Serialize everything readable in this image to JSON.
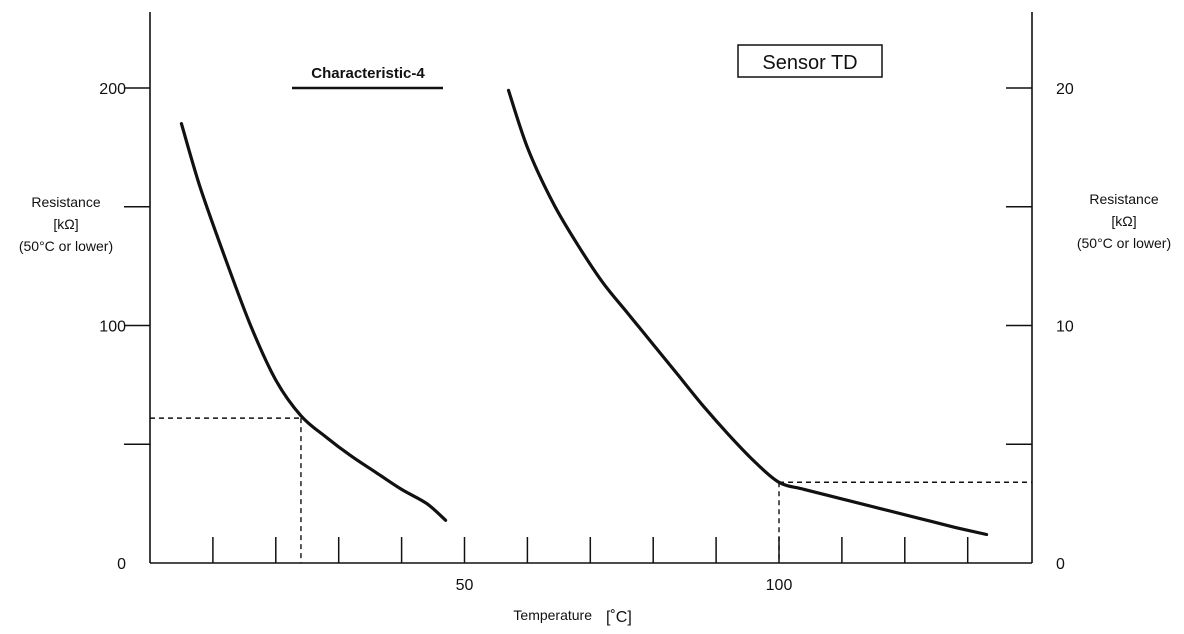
{
  "chart_data": {
    "type": "line",
    "x_label": "Temperature",
    "x_unit": "[˚C]",
    "x_range": [
      0,
      140
    ],
    "x_ticks": [
      50,
      100
    ],
    "left_axis": {
      "label_lines": [
        "Resistance",
        "[kΩ]",
        "(50°C or lower)"
      ],
      "range": [
        0,
        200
      ],
      "ticks": [
        0,
        100,
        200
      ]
    },
    "right_axis": {
      "label_lines": [
        "Resistance",
        "[kΩ]",
        "(50°C or lower)"
      ],
      "range": [
        0,
        20
      ],
      "ticks": [
        0,
        10,
        20
      ]
    },
    "grid": false,
    "legend": {
      "label": "Characteristic-4",
      "placement": "top-left"
    },
    "annotation_box": {
      "text": "Sensor TD",
      "placement": "top-right"
    },
    "series": [
      {
        "axis": "left",
        "x": [
          5,
          8,
          12,
          16,
          20,
          24,
          28,
          32,
          36,
          40,
          44,
          47
        ],
        "y": [
          185,
          158,
          128,
          100,
          77,
          62,
          53,
          45,
          38,
          31,
          25,
          18
        ]
      },
      {
        "axis": "right",
        "x": [
          57,
          60,
          64,
          68,
          72,
          76,
          80,
          84,
          88,
          92,
          96,
          100,
          104,
          110,
          116,
          122,
          128,
          133
        ],
        "y": [
          19.9,
          17.5,
          15.2,
          13.4,
          11.8,
          10.5,
          9.2,
          7.9,
          6.6,
          5.4,
          4.3,
          3.4,
          3.1,
          2.7,
          2.3,
          1.9,
          1.5,
          1.2
        ]
      }
    ],
    "reference_points": [
      {
        "axis": "left",
        "x": 24,
        "y": 61
      },
      {
        "axis": "right",
        "x": 100,
        "y": 3.4
      }
    ]
  }
}
